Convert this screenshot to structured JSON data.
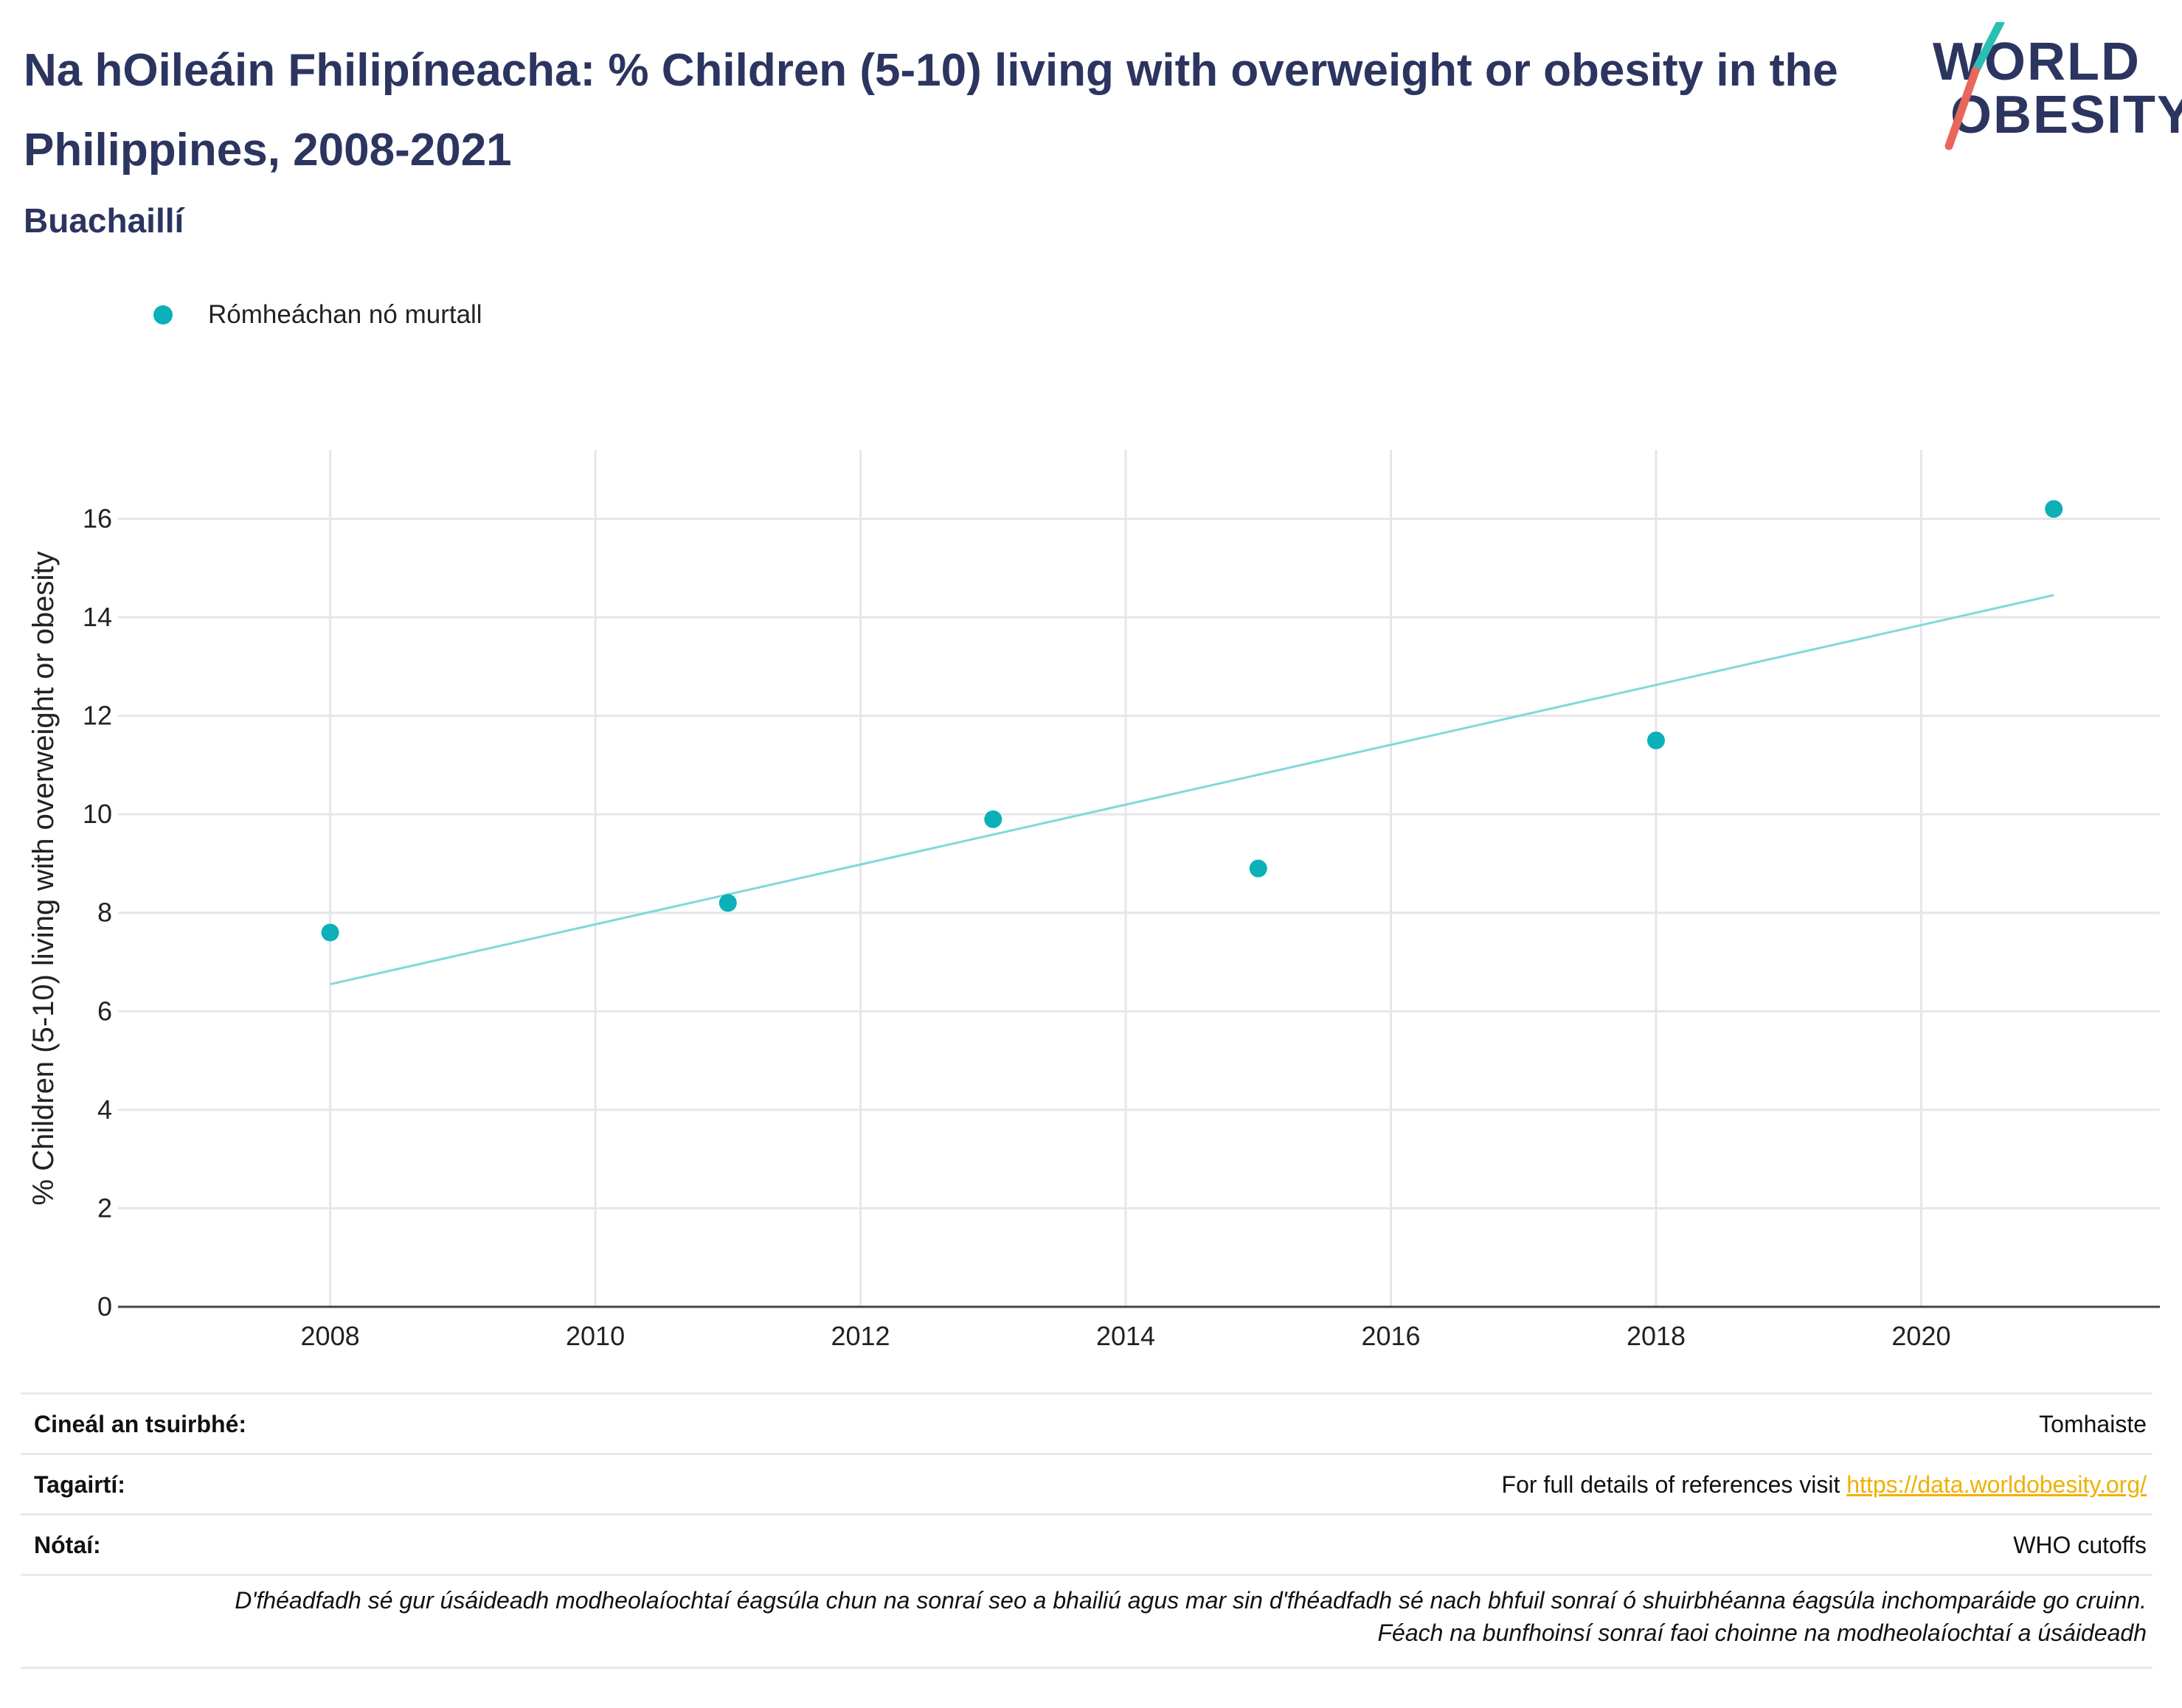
{
  "header": {
    "title": "Na hOileáin Fhilipíneacha: % Children (5-10) living with overweight or obesity in the Philippines, 2008-2021",
    "subtitle": "Buachaillí"
  },
  "logo": {
    "line1": "WORLD",
    "line2": "OBESITY",
    "colors": {
      "teal": "#2bbfb3",
      "coral": "#e8675a",
      "navy": "#2c3560"
    }
  },
  "legend": {
    "label": "Rómheáchan nó murtall",
    "color": "#0bb0b9"
  },
  "chart_data": {
    "type": "scatter",
    "title": "Na hOileáin Fhilipíneacha: % Children (5-10) living with overweight or obesity in the Philippines, 2008-2021",
    "subtitle": "Buachaillí",
    "xlabel": "",
    "ylabel": "% Children (5-10) living with overweight or obesity",
    "xlim": [
      2006.4,
      2021.8
    ],
    "ylim": [
      0,
      17.4
    ],
    "x_ticks": [
      2008,
      2010,
      2012,
      2014,
      2016,
      2018,
      2020
    ],
    "y_ticks": [
      0,
      2,
      4,
      6,
      8,
      10,
      12,
      14,
      16
    ],
    "grid": true,
    "legend_position": "top-left",
    "series": [
      {
        "name": "Rómheáchan nó murtall",
        "color": "#0bb0b9",
        "x": [
          2008,
          2011,
          2013,
          2015,
          2018,
          2021
        ],
        "y": [
          7.6,
          8.2,
          9.9,
          8.9,
          11.5,
          16.2
        ]
      }
    ],
    "trendline": {
      "color": "#7fd8dc",
      "x": [
        2008,
        2021
      ],
      "y": [
        6.55,
        14.45
      ]
    }
  },
  "meta": {
    "survey_type_label": "Cineál an tsuirbhé:",
    "survey_type_value": "Tomhaiste",
    "references_label": "Tagairtí:",
    "references_text": "For full details of references visit ",
    "references_link": "https://data.worldobesity.org/",
    "notes_label": "Nótaí:",
    "notes_value": "WHO cutoffs",
    "disclaimer_line1": "D'fhéadfadh sé gur úsáideadh modheolaíochtaí éagsúla chun na sonraí seo a bhailiú agus mar sin d'fhéadfadh sé nach bhfuil sonraí ó shuirbhéanna éagsúla inchomparáide go cruinn.",
    "disclaimer_line2": "Féach na bunfhoinsí sonraí faoi choinne na modheolaíochtaí a úsáideadh"
  }
}
